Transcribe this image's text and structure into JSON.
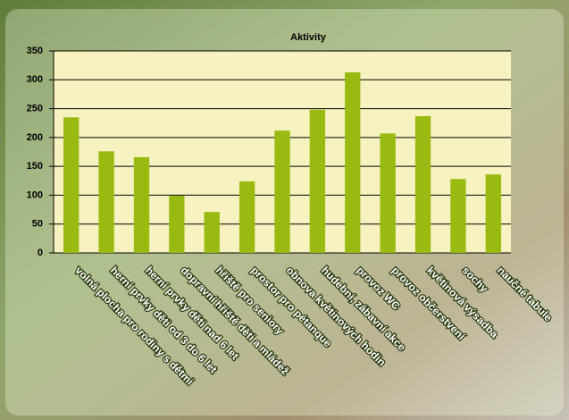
{
  "chart_data": {
    "type": "bar",
    "title": "Aktivity",
    "categories": [
      "volná plocha pro rodiny s dětmi",
      "herní prvky děti od 3 do 6 let",
      "herní prvky děti nad 6 let",
      "dopravní hřiště děti a mládež",
      "hřiště pro seniory",
      "prostor pro pétanque",
      "obnova květinových hodin",
      "hudební, zábavní akce",
      "provoz WC",
      "provoz občerstvení",
      "květinová výsadba",
      "sochy",
      "naučné tabule"
    ],
    "values": [
      235,
      176,
      166,
      99,
      71,
      124,
      212,
      248,
      313,
      207,
      237,
      128,
      136
    ],
    "color": "#99bb11",
    "ylim": [
      0,
      350
    ],
    "yticks": [
      0,
      50,
      100,
      150,
      200,
      250,
      300,
      350
    ],
    "grid": true
  }
}
